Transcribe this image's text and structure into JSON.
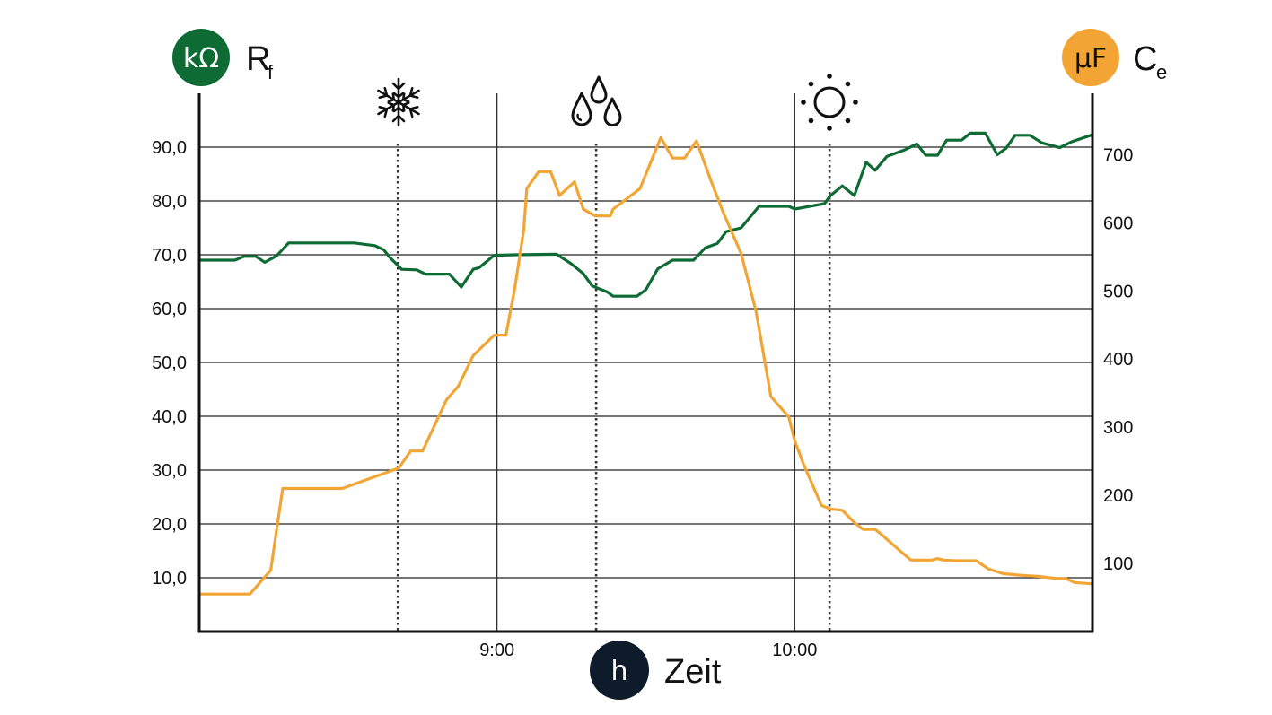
{
  "badges": {
    "left_unit": "kΩ",
    "right_unit": "μF",
    "x_unit": "h"
  },
  "labels": {
    "left_main": "R",
    "left_sub": "f",
    "right_main": "C",
    "right_sub": "e",
    "x_label": "Zeit"
  },
  "colors": {
    "green": "#0f6b34",
    "orange": "#f2a534",
    "navy": "#0d1b2a",
    "grid": "#222222"
  },
  "icons": [
    "snowflake-icon",
    "raindrops-icon",
    "sun-icon"
  ],
  "chart_data": {
    "type": "line",
    "x_unit": "hours",
    "xlim": [
      8.0,
      11.0
    ],
    "x_ticks": [
      {
        "value": 9.0,
        "label": "9:00"
      },
      {
        "value": 10.0,
        "label": "10:00"
      }
    ],
    "x_major_gridlines": [
      9.0,
      10.0
    ],
    "event_markers": [
      {
        "x": 8.667,
        "icon": "snowflake-icon"
      },
      {
        "x": 9.333,
        "icon": "raindrops-icon"
      },
      {
        "x": 10.117,
        "icon": "sun-icon"
      }
    ],
    "y_left": {
      "lim": [
        0,
        100
      ],
      "ticks": [
        10,
        20,
        30,
        40,
        50,
        60,
        70,
        80,
        90
      ],
      "tick_labels": [
        "10,0",
        "20,0",
        "30,0",
        "40,0",
        "50,0",
        "60,0",
        "70,0",
        "80,0",
        "90,0"
      ]
    },
    "y_right": {
      "lim": [
        0,
        790
      ],
      "ticks": [
        100,
        200,
        300,
        400,
        500,
        600,
        700
      ],
      "tick_labels": [
        "100",
        "200",
        "300",
        "400",
        "500",
        "600",
        "700"
      ]
    },
    "grid": true,
    "series": [
      {
        "axis": "left",
        "color": "#0f6b34",
        "points": [
          [
            8.0,
            69.0
          ],
          [
            8.12,
            69.0
          ],
          [
            8.15,
            69.7
          ],
          [
            8.19,
            69.7
          ],
          [
            8.22,
            68.6
          ],
          [
            8.26,
            69.8
          ],
          [
            8.3,
            72.2
          ],
          [
            8.39,
            72.2
          ],
          [
            8.5,
            72.2
          ],
          [
            8.52,
            72.2
          ],
          [
            8.56,
            71.9
          ],
          [
            8.59,
            71.7
          ],
          [
            8.62,
            70.9
          ],
          [
            8.64,
            69.5
          ],
          [
            8.68,
            67.3
          ],
          [
            8.73,
            67.2
          ],
          [
            8.76,
            66.4
          ],
          [
            8.84,
            66.4
          ],
          [
            8.88,
            64.0
          ],
          [
            8.92,
            67.3
          ],
          [
            8.94,
            67.6
          ],
          [
            8.99,
            69.9
          ],
          [
            9.06,
            70.0
          ],
          [
            9.2,
            70.1
          ],
          [
            9.25,
            68.3
          ],
          [
            9.29,
            66.5
          ],
          [
            9.32,
            64.2
          ],
          [
            9.37,
            63.1
          ],
          [
            9.39,
            62.3
          ],
          [
            9.47,
            62.3
          ],
          [
            9.5,
            63.5
          ],
          [
            9.54,
            67.4
          ],
          [
            9.59,
            69.0
          ],
          [
            9.66,
            69.0
          ],
          [
            9.7,
            71.3
          ],
          [
            9.74,
            72.1
          ],
          [
            9.77,
            74.3
          ],
          [
            9.82,
            75.0
          ],
          [
            9.88,
            79.0
          ],
          [
            9.98,
            79.0
          ],
          [
            10.0,
            78.5
          ],
          [
            10.1,
            79.5
          ],
          [
            10.12,
            81.0
          ],
          [
            10.16,
            82.8
          ],
          [
            10.2,
            81.0
          ],
          [
            10.24,
            87.2
          ],
          [
            10.27,
            85.7
          ],
          [
            10.31,
            88.3
          ],
          [
            10.37,
            89.5
          ],
          [
            10.41,
            90.6
          ],
          [
            10.44,
            88.5
          ],
          [
            10.48,
            88.5
          ],
          [
            10.51,
            91.3
          ],
          [
            10.56,
            91.3
          ],
          [
            10.59,
            92.6
          ],
          [
            10.64,
            92.6
          ],
          [
            10.68,
            88.6
          ],
          [
            10.71,
            89.8
          ],
          [
            10.74,
            92.2
          ],
          [
            10.79,
            92.2
          ],
          [
            10.83,
            90.8
          ],
          [
            10.89,
            89.9
          ],
          [
            10.93,
            91.0
          ],
          [
            11.0,
            92.3
          ]
        ]
      },
      {
        "axis": "right",
        "color": "#f2a534",
        "points": [
          [
            8.0,
            55
          ],
          [
            8.17,
            55
          ],
          [
            8.24,
            90
          ],
          [
            8.28,
            210
          ],
          [
            8.4,
            210
          ],
          [
            8.48,
            210
          ],
          [
            8.67,
            240
          ],
          [
            8.71,
            265
          ],
          [
            8.75,
            265
          ],
          [
            8.83,
            340
          ],
          [
            8.87,
            360
          ],
          [
            8.92,
            405
          ],
          [
            8.99,
            435
          ],
          [
            9.03,
            435
          ],
          [
            9.06,
            505
          ],
          [
            9.09,
            590
          ],
          [
            9.1,
            650
          ],
          [
            9.14,
            675
          ],
          [
            9.18,
            675
          ],
          [
            9.21,
            640
          ],
          [
            9.26,
            660
          ],
          [
            9.29,
            620
          ],
          [
            9.33,
            610
          ],
          [
            9.38,
            610
          ],
          [
            9.39,
            620
          ],
          [
            9.48,
            650
          ],
          [
            9.55,
            725
          ],
          [
            9.59,
            695
          ],
          [
            9.63,
            695
          ],
          [
            9.67,
            720
          ],
          [
            9.72,
            660
          ],
          [
            9.76,
            615
          ],
          [
            9.82,
            555
          ],
          [
            9.87,
            470
          ],
          [
            9.92,
            345
          ],
          [
            9.98,
            315
          ],
          [
            10.0,
            280
          ],
          [
            10.03,
            245
          ],
          [
            10.09,
            185
          ],
          [
            10.12,
            180
          ],
          [
            10.16,
            178
          ],
          [
            10.2,
            160
          ],
          [
            10.23,
            150
          ],
          [
            10.27,
            150
          ],
          [
            10.29,
            143
          ],
          [
            10.35,
            120
          ],
          [
            10.39,
            105
          ],
          [
            10.46,
            105
          ],
          [
            10.48,
            107
          ],
          [
            10.5,
            105
          ],
          [
            10.54,
            104
          ],
          [
            10.58,
            104
          ],
          [
            10.61,
            104
          ],
          [
            10.65,
            92
          ],
          [
            10.7,
            85
          ],
          [
            10.75,
            83
          ],
          [
            10.82,
            81
          ],
          [
            10.88,
            78
          ],
          [
            10.91,
            78
          ],
          [
            10.94,
            72
          ],
          [
            11.0,
            70
          ]
        ]
      }
    ]
  }
}
